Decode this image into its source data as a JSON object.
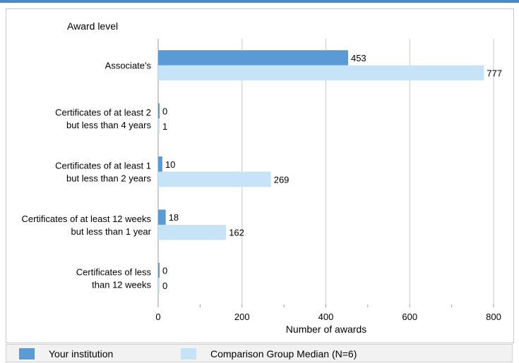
{
  "chart_data": {
    "type": "bar",
    "orientation": "horizontal",
    "y_header": "Award level",
    "xlabel": "Number of awards",
    "categories": [
      [
        "Associate's"
      ],
      [
        "Certificates of at least 2",
        "but less than 4 years"
      ],
      [
        "Certificates of at least 1",
        "but  less than 2 years"
      ],
      [
        "Certificates of at least 12 weeks",
        "but less than 1 year"
      ],
      [
        "Certificates of less",
        "than 12 weeks"
      ]
    ],
    "series": [
      {
        "name": "Your institution",
        "values": [
          453,
          0,
          10,
          18,
          0
        ],
        "color": "#5b9bd5"
      },
      {
        "name": "Comparison Group Median (N=6)",
        "values": [
          777,
          1,
          269,
          162,
          0
        ],
        "color": "#c6e3f7"
      }
    ],
    "xlim": [
      0,
      800
    ],
    "xticks": [
      0,
      200,
      400,
      600,
      800
    ],
    "grid": true,
    "legend_position": "bottom"
  }
}
